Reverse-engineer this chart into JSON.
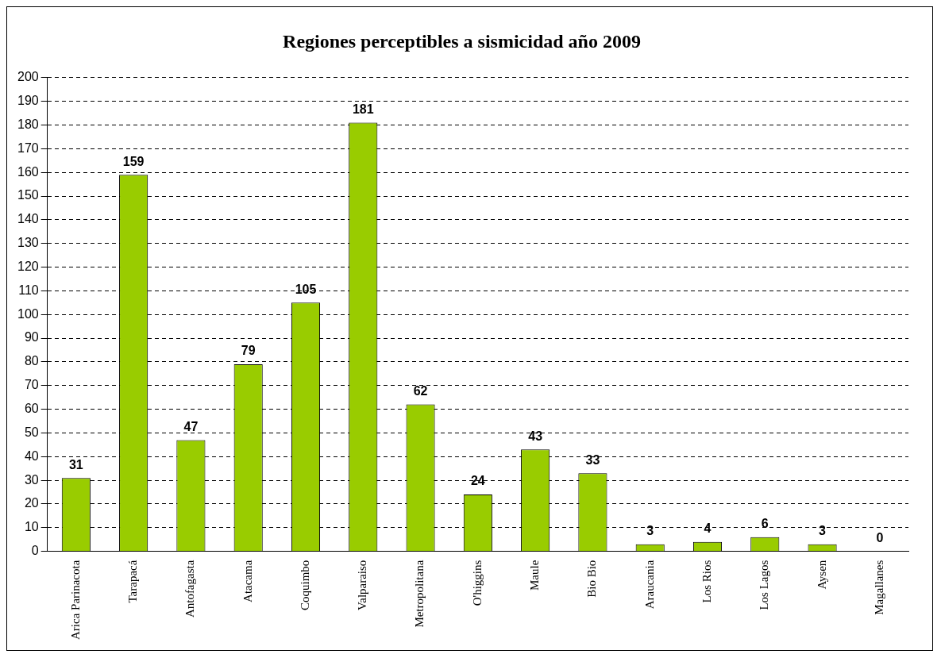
{
  "chart_data": {
    "type": "bar",
    "title": "Regiones perceptibles a sismicidad año 2009",
    "categories": [
      "Arica Parinacota",
      "Tarapacá",
      "Antofagasta",
      "Atacama",
      "Coquimbo",
      "Valparaiso",
      "Metropolitana",
      "O'higgins",
      "Maule",
      "Bio Bio",
      "Araucania",
      "Los Rios",
      "Los Lagos",
      "Aysen",
      "Magallanes"
    ],
    "values": [
      31,
      159,
      47,
      79,
      105,
      181,
      62,
      24,
      43,
      33,
      3,
      4,
      6,
      3,
      0
    ],
    "color": "#99cc00",
    "ylim": [
      0,
      200
    ],
    "yticks": [
      0,
      10,
      20,
      30,
      40,
      50,
      60,
      70,
      80,
      90,
      100,
      110,
      120,
      130,
      140,
      150,
      160,
      170,
      180,
      190,
      200
    ],
    "grid": "y",
    "data_labels": true,
    "legend": false
  }
}
